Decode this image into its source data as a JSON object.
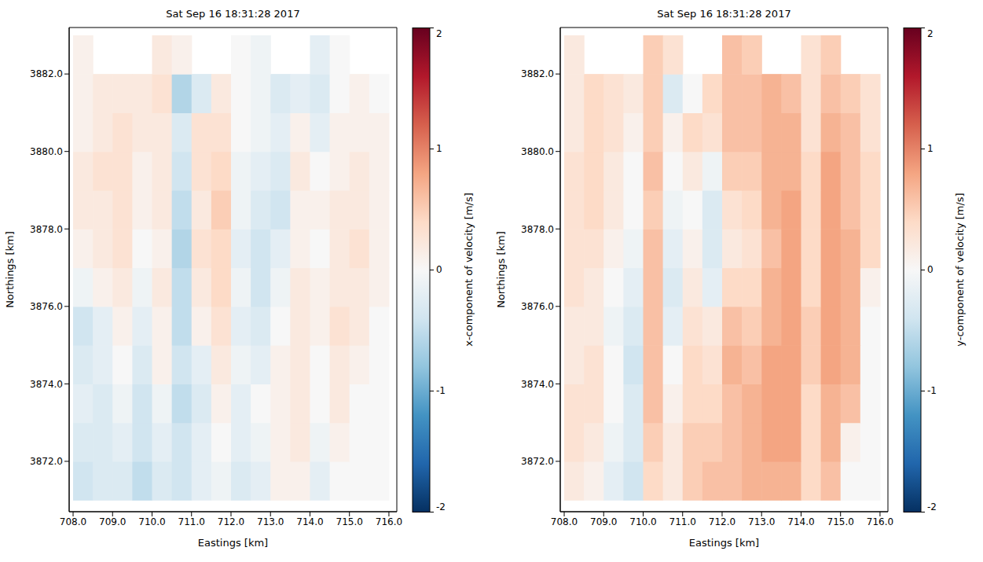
{
  "chart_data": [
    {
      "type": "heatmap",
      "title": "Sat Sep 16 18:31:28 2017",
      "x_label": "Eastings [km]",
      "y_label": "Northings [km]",
      "xlim": [
        707.9,
        716.2
      ],
      "ylim": [
        3870.7,
        3883.2
      ],
      "xticks": [
        {
          "value": 708,
          "label": "708.0"
        },
        {
          "value": 709,
          "label": "709.0"
        },
        {
          "value": 710,
          "label": "710.0"
        },
        {
          "value": 711,
          "label": "711.0"
        },
        {
          "value": 712,
          "label": "712.0"
        },
        {
          "value": 713,
          "label": "713.0"
        },
        {
          "value": 714,
          "label": "714.0"
        },
        {
          "value": 715,
          "label": "715.0"
        },
        {
          "value": 716,
          "label": "716.0"
        }
      ],
      "yticks": [
        {
          "value": 3872,
          "label": "3872.0"
        },
        {
          "value": 3874,
          "label": "3874.0"
        },
        {
          "value": 3876,
          "label": "3876.0"
        },
        {
          "value": 3878,
          "label": "3878.0"
        },
        {
          "value": 3880,
          "label": "3880.0"
        },
        {
          "value": 3882,
          "label": "3882.0"
        }
      ],
      "grid": false,
      "x": [
        708.25,
        708.75,
        709.25,
        709.75,
        710.25,
        710.75,
        711.25,
        711.75,
        712.25,
        712.75,
        713.25,
        713.75,
        714.25,
        714.75,
        715.25,
        715.75
      ],
      "y": [
        3871.5,
        3872.5,
        3873.5,
        3874.5,
        3875.5,
        3876.5,
        3877.5,
        3878.5,
        3879.5,
        3880.5,
        3881.5,
        3882.5
      ],
      "cells": [
        [
          -0.4,
          -0.3,
          -0.3,
          -0.5,
          -0.3,
          -0.4,
          -0.2,
          -0.1,
          -0.3,
          -0.2,
          0.1,
          0.1,
          -0.2,
          0.0,
          0.0,
          0.0
        ],
        [
          -0.3,
          -0.3,
          -0.2,
          -0.4,
          -0.2,
          -0.4,
          -0.2,
          0.0,
          -0.2,
          -0.1,
          0.1,
          0.2,
          -0.1,
          0.1,
          0.0,
          0.0
        ],
        [
          -0.2,
          -0.3,
          -0.1,
          -0.4,
          -0.1,
          -0.5,
          -0.3,
          0.1,
          -0.2,
          0.0,
          0.1,
          0.2,
          0.0,
          0.2,
          0.0,
          0.0
        ],
        [
          -0.3,
          -0.2,
          0.0,
          -0.3,
          0.1,
          -0.4,
          -0.2,
          0.2,
          -0.1,
          -0.2,
          0.1,
          0.2,
          0.0,
          0.2,
          0.1,
          0.0
        ],
        [
          -0.4,
          -0.2,
          0.1,
          -0.2,
          0.1,
          -0.5,
          0.1,
          0.3,
          -0.2,
          -0.3,
          0.0,
          0.2,
          0.1,
          0.3,
          0.2,
          0.0
        ],
        [
          -0.1,
          0.1,
          0.2,
          -0.1,
          0.2,
          -0.5,
          0.2,
          0.4,
          -0.1,
          -0.4,
          -0.1,
          0.2,
          0.1,
          0.2,
          0.2,
          0.1
        ],
        [
          0.1,
          0.2,
          0.3,
          0.0,
          0.1,
          -0.6,
          0.3,
          0.4,
          -0.2,
          -0.4,
          -0.2,
          0.1,
          0.0,
          0.2,
          0.3,
          0.1
        ],
        [
          0.2,
          0.2,
          0.3,
          0.1,
          0.2,
          -0.5,
          0.2,
          0.5,
          -0.1,
          -0.3,
          -0.4,
          0.1,
          0.1,
          0.2,
          0.2,
          0.1
        ],
        [
          0.2,
          0.3,
          0.3,
          0.1,
          0.2,
          -0.4,
          0.3,
          0.4,
          -0.1,
          -0.2,
          -0.3,
          0.2,
          0.0,
          0.1,
          0.2,
          0.1
        ],
        [
          0.1,
          0.2,
          0.3,
          0.2,
          0.2,
          -0.3,
          0.3,
          0.3,
          0.0,
          -0.1,
          -0.2,
          0.1,
          -0.2,
          0.1,
          0.1,
          0.1
        ],
        [
          0.1,
          0.2,
          0.2,
          0.2,
          0.3,
          -0.6,
          -0.3,
          0.2,
          0.0,
          -0.1,
          -0.3,
          -0.2,
          -0.3,
          0.0,
          0.1,
          0.0
        ],
        [
          0.1,
          null,
          null,
          null,
          0.2,
          0.1,
          null,
          null,
          0.0,
          -0.1,
          null,
          null,
          -0.2,
          0.0,
          null,
          null
        ]
      ],
      "colorbar": {
        "label": "x-component of velocity [m/s]",
        "range": [
          -2,
          2
        ],
        "ticks": [
          -2,
          -1,
          0,
          1,
          2
        ]
      }
    },
    {
      "type": "heatmap",
      "title": "Sat Sep 16 18:31:28 2017",
      "x_label": "Eastings [km]",
      "y_label": "Northings [km]",
      "xlim": [
        707.9,
        716.2
      ],
      "ylim": [
        3870.7,
        3883.2
      ],
      "xticks": [
        {
          "value": 708,
          "label": "708.0"
        },
        {
          "value": 709,
          "label": "709.0"
        },
        {
          "value": 710,
          "label": "710.0"
        },
        {
          "value": 711,
          "label": "711.0"
        },
        {
          "value": 712,
          "label": "712.0"
        },
        {
          "value": 713,
          "label": "713.0"
        },
        {
          "value": 714,
          "label": "714.0"
        },
        {
          "value": 715,
          "label": "715.0"
        },
        {
          "value": 716,
          "label": "716.0"
        }
      ],
      "yticks": [
        {
          "value": 3872,
          "label": "3872.0"
        },
        {
          "value": 3874,
          "label": "3874.0"
        },
        {
          "value": 3876,
          "label": "3876.0"
        },
        {
          "value": 3878,
          "label": "3878.0"
        },
        {
          "value": 3880,
          "label": "3880.0"
        },
        {
          "value": 3882,
          "label": "3882.0"
        }
      ],
      "grid": false,
      "x": [
        708.25,
        708.75,
        709.25,
        709.75,
        710.25,
        710.75,
        711.25,
        711.75,
        712.25,
        712.75,
        713.25,
        713.75,
        714.25,
        714.75,
        715.25,
        715.75
      ],
      "y": [
        3871.5,
        3872.5,
        3873.5,
        3874.5,
        3875.5,
        3876.5,
        3877.5,
        3878.5,
        3879.5,
        3880.5,
        3881.5,
        3882.5
      ],
      "cells": [
        [
          0.2,
          0.1,
          -0.2,
          -0.4,
          0.4,
          0.2,
          0.5,
          0.6,
          0.6,
          0.7,
          0.7,
          0.7,
          0.4,
          0.6,
          0.0,
          0.0
        ],
        [
          0.3,
          0.2,
          -0.1,
          -0.3,
          0.5,
          0.2,
          0.5,
          0.5,
          0.6,
          0.7,
          0.8,
          0.8,
          0.4,
          0.7,
          0.1,
          0.0
        ],
        [
          0.3,
          0.3,
          0.0,
          -0.3,
          0.6,
          0.1,
          0.4,
          0.4,
          0.6,
          0.7,
          0.8,
          0.8,
          0.4,
          0.7,
          0.6,
          0.0
        ],
        [
          0.2,
          0.3,
          0.0,
          -0.4,
          0.6,
          0.0,
          0.4,
          0.3,
          0.7,
          0.6,
          0.8,
          0.8,
          0.5,
          0.8,
          0.7,
          0.0
        ],
        [
          0.2,
          0.2,
          -0.1,
          -0.3,
          0.6,
          -0.2,
          0.3,
          0.2,
          0.6,
          0.5,
          0.7,
          0.8,
          0.5,
          0.8,
          0.7,
          0.0
        ],
        [
          0.3,
          0.2,
          0.0,
          -0.2,
          0.6,
          -0.3,
          0.2,
          -0.2,
          0.4,
          0.4,
          0.7,
          0.8,
          0.4,
          0.8,
          0.7,
          0.1
        ],
        [
          0.3,
          0.3,
          0.1,
          -0.1,
          0.6,
          -0.2,
          0.1,
          -0.3,
          0.2,
          0.3,
          0.6,
          0.8,
          0.4,
          0.8,
          0.7,
          0.4
        ],
        [
          0.3,
          0.4,
          0.2,
          0.0,
          0.5,
          -0.1,
          0.0,
          -0.3,
          0.3,
          0.4,
          0.7,
          0.8,
          0.4,
          0.8,
          0.6,
          0.4
        ],
        [
          0.3,
          0.4,
          0.2,
          0.0,
          0.6,
          0.0,
          0.2,
          -0.1,
          0.5,
          0.5,
          0.7,
          0.7,
          0.4,
          0.8,
          0.6,
          0.4
        ],
        [
          0.2,
          0.4,
          0.3,
          0.1,
          0.5,
          0.1,
          0.4,
          0.3,
          0.6,
          0.6,
          0.7,
          0.7,
          0.3,
          0.7,
          0.6,
          0.3
        ],
        [
          0.2,
          0.4,
          0.3,
          0.2,
          0.5,
          -0.3,
          0.0,
          0.4,
          0.6,
          0.6,
          0.7,
          0.6,
          0.3,
          0.6,
          0.5,
          0.3
        ],
        [
          0.2,
          null,
          null,
          null,
          0.5,
          0.3,
          null,
          null,
          0.6,
          0.5,
          null,
          null,
          0.3,
          0.5,
          null,
          null
        ]
      ],
      "colorbar": {
        "label": "y-component of velocity [m/s]",
        "range": [
          -2,
          2
        ],
        "ticks": [
          -2,
          -1,
          0,
          1,
          2
        ]
      }
    }
  ]
}
